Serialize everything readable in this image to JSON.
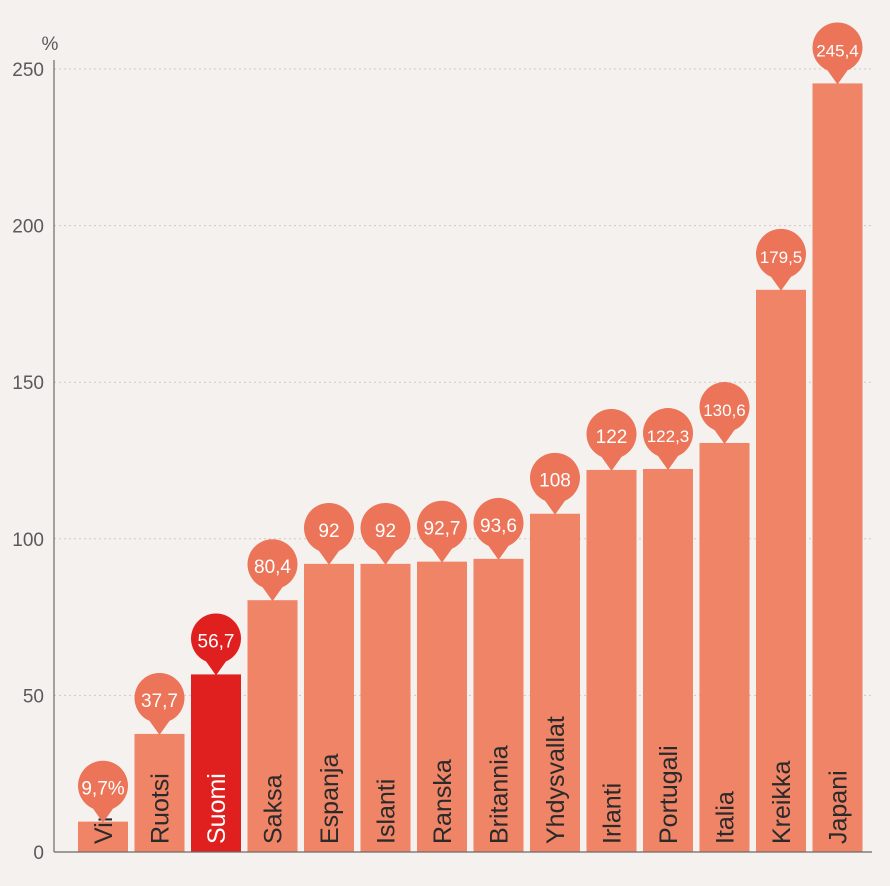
{
  "chart_data": {
    "type": "bar",
    "unit_label": "%",
    "categories": [
      "Viro",
      "Ruotsi",
      "Suomi",
      "Saksa",
      "Espanja",
      "Islanti",
      "Ranska",
      "Britannia",
      "Yhdysvallat",
      "Irlanti",
      "Portugali",
      "Italia",
      "Kreikka",
      "Japani"
    ],
    "values": [
      9.7,
      37.7,
      56.7,
      80.4,
      92,
      92,
      92.7,
      93.6,
      108,
      122,
      122.3,
      130.6,
      179.5,
      245.4
    ],
    "value_labels": [
      "9,7%",
      "37,7",
      "56,7",
      "80,4",
      "92",
      "92",
      "92,7",
      "93,6",
      "108",
      "122",
      "122,3",
      "130,6",
      "179,5",
      "245,4"
    ],
    "highlight": "Suomi",
    "ylim": [
      0,
      250
    ],
    "yticks": [
      0,
      50,
      100,
      150,
      200,
      250
    ],
    "grid": true,
    "colors": {
      "bar": "#ef8467",
      "highlight": "#e01f1f",
      "bubble": "#ec7458",
      "background": "#f5f1ee"
    }
  }
}
